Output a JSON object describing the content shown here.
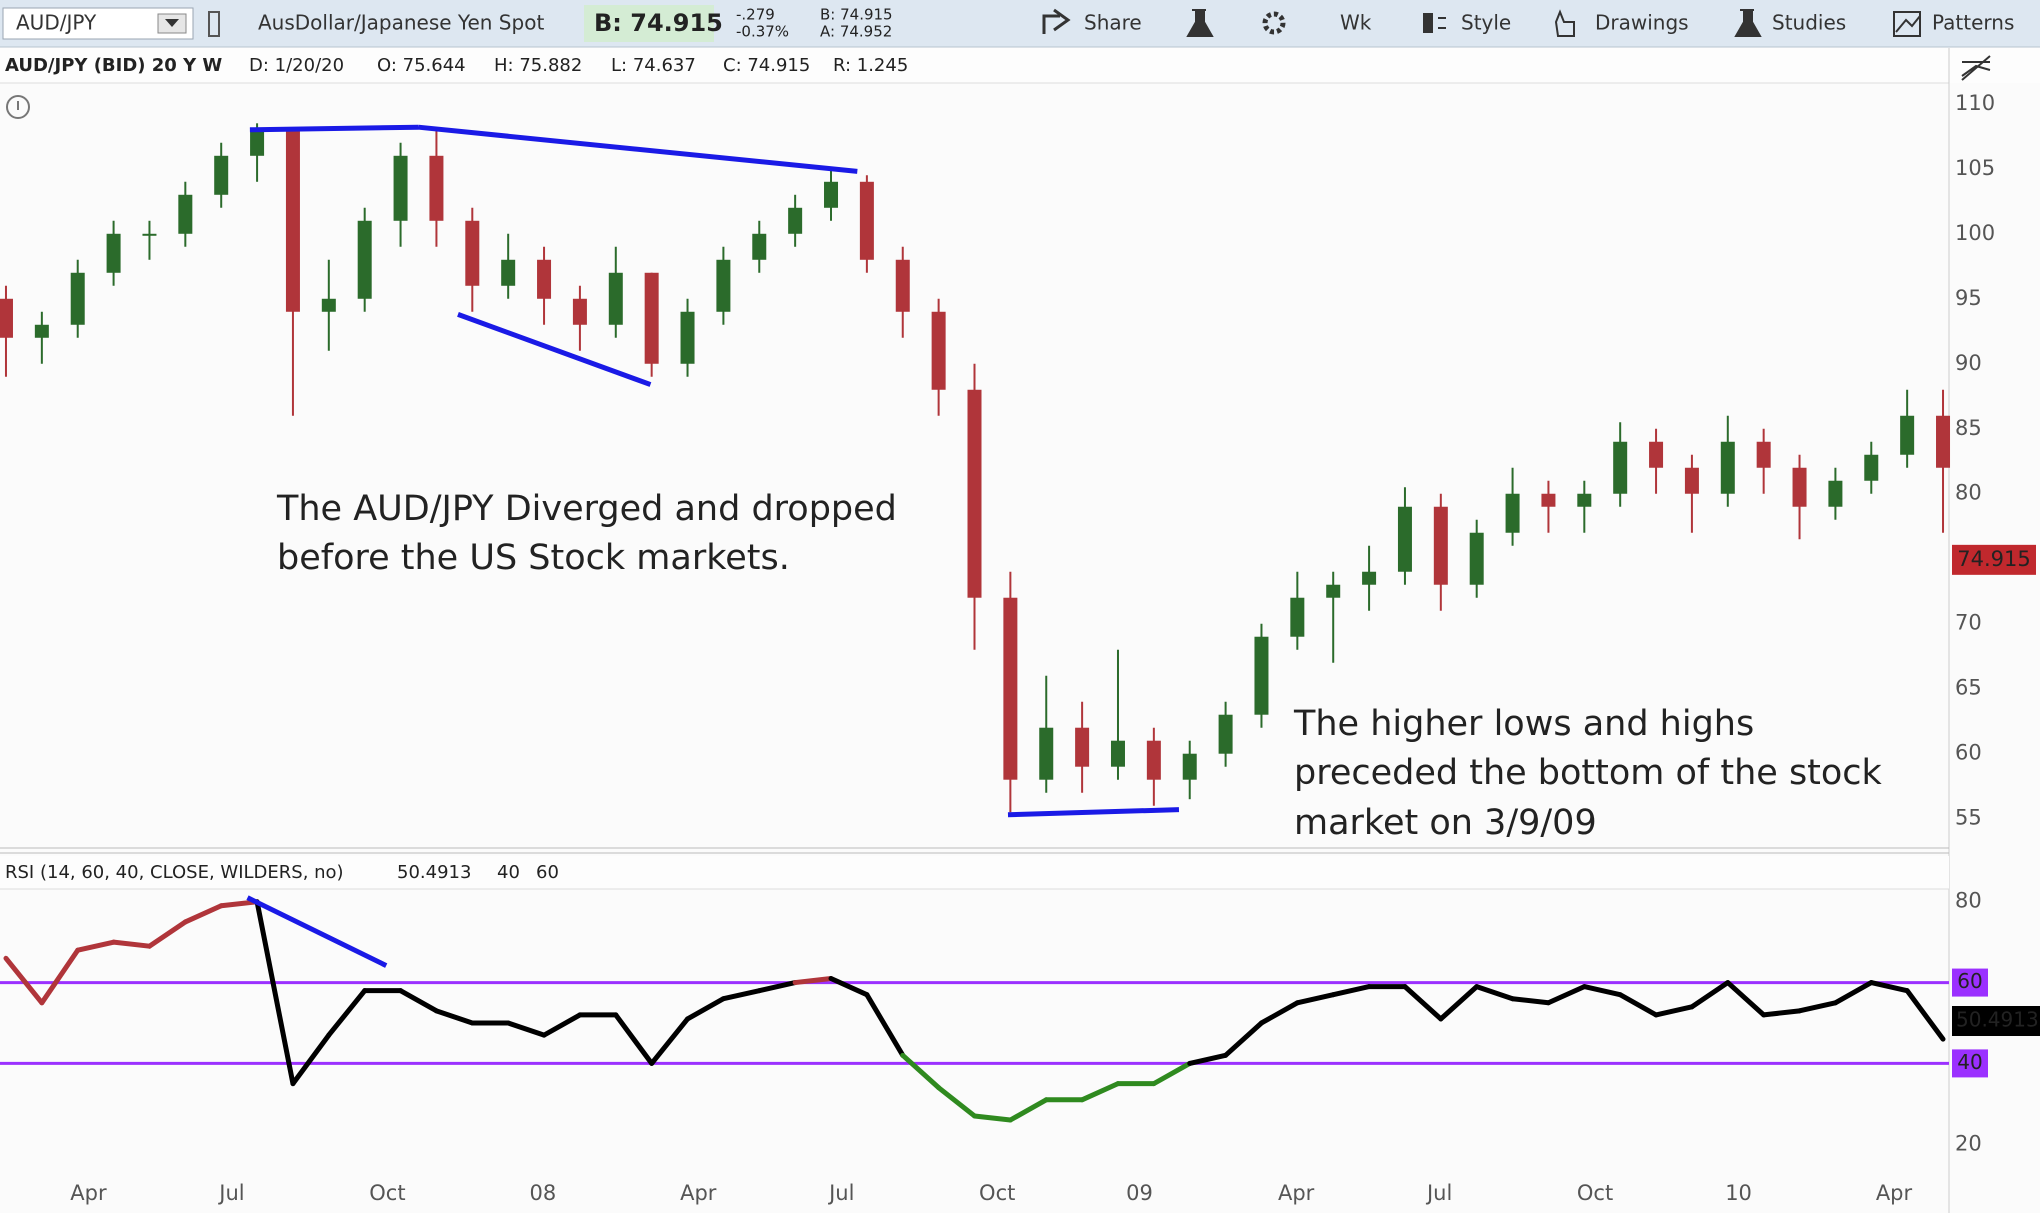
{
  "toolbar": {
    "symbol": "AUD/JPY",
    "description": "AusDollar/Japanese Yen Spot",
    "bid": "B: 74.915",
    "change": "-.279",
    "change_pct": "-0.37%",
    "bid_small": "B: 74.915",
    "ask_small": "A: 74.952",
    "buttons": [
      "Share",
      "Wk",
      "Style",
      "Drawings",
      "Studies",
      "Patterns"
    ]
  },
  "info": {
    "title": "AUD/JPY (BID) 20 Y W",
    "fields": [
      "D: 1/20/20",
      "O: 75.644",
      "H: 75.882",
      "L: 74.637",
      "C: 74.915",
      "R: 1.245"
    ]
  },
  "chart_data": [
    {
      "type": "candlestick",
      "x": [
        0.5,
        3.5,
        6.5,
        9.5,
        12.5,
        15.5,
        18.5,
        21.5,
        24.5,
        27.5,
        30.5,
        33.5,
        36.5,
        39.5,
        42.5,
        45.5,
        48.5,
        51.5,
        54.5,
        57.5,
        60.5,
        63.5,
        66.5,
        69.5,
        72.5,
        75.5,
        78.5,
        81.5,
        84.5,
        87.5,
        90.5,
        93.5,
        96.5,
        99.5,
        102.5,
        105.5,
        108.5,
        111.5,
        114.5,
        117.5,
        120.5,
        123.5,
        126.5,
        129.5,
        132.5,
        135.5,
        138.5,
        141.5,
        144.5,
        147.5,
        150.5,
        153.5,
        156.5,
        159.5,
        162.5
      ],
      "open": [
        95,
        92,
        93,
        97,
        100,
        100,
        103,
        106,
        108,
        94,
        95,
        101,
        106,
        101,
        96,
        98,
        95,
        93,
        97,
        90,
        94,
        98,
        100,
        102,
        104,
        98,
        94,
        88,
        72,
        58,
        62,
        59,
        61,
        58,
        60,
        63,
        69,
        72,
        73,
        74,
        79,
        73,
        77,
        80,
        79,
        80,
        84,
        82,
        80,
        84,
        82,
        79,
        81,
        83,
        86
      ],
      "high": [
        96,
        94,
        98,
        101,
        101,
        104,
        107,
        108.5,
        108,
        98,
        102,
        107,
        108,
        102,
        100,
        99,
        96,
        99,
        97,
        95,
        99,
        101,
        103,
        105,
        104.5,
        99,
        95,
        90,
        74,
        66,
        64,
        68,
        62,
        61,
        64,
        70,
        74,
        74,
        76,
        80.5,
        80,
        78,
        82,
        81,
        81,
        85.5,
        85,
        83,
        86,
        85,
        83,
        82,
        84,
        88,
        88
      ],
      "low": [
        89,
        90,
        92,
        96,
        98,
        99,
        102,
        104,
        86,
        91,
        94,
        99,
        99,
        94,
        95,
        93,
        91,
        92,
        89,
        89,
        93,
        97,
        99,
        101,
        97,
        92,
        86,
        68,
        55.5,
        57,
        57,
        58,
        56,
        56.5,
        59,
        62,
        68,
        67,
        71,
        73,
        71,
        72,
        76,
        77,
        77,
        79,
        80,
        77,
        79,
        80,
        76.5,
        78,
        80,
        82,
        77
      ],
      "close": [
        92,
        93,
        97,
        100,
        100,
        103,
        106,
        108,
        94,
        95,
        101,
        106,
        101,
        96,
        98,
        95,
        93,
        97,
        90,
        94,
        98,
        100,
        102,
        104,
        98,
        94,
        88,
        72,
        58,
        62,
        59,
        61,
        58,
        60,
        63,
        69,
        72,
        73,
        74,
        79,
        73,
        77,
        80,
        79,
        80,
        84,
        82,
        80,
        84,
        82,
        79,
        81,
        83,
        86,
        82
      ],
      "up_color": "#2b6b2b",
      "down_color": "#b0353a",
      "xlim": [
        0,
        163
      ],
      "ylim": [
        52.9,
        111.6
      ],
      "yticks": [
        55,
        60,
        65,
        70,
        75,
        80,
        85,
        90,
        95,
        100,
        105,
        110
      ],
      "last_price": 74.915,
      "last_price_color": "#c0282d",
      "trendline_color": "#1a1ae6",
      "trendlines": [
        {
          "x": [
            20.9,
            35.0
          ],
          "y": [
            108.0,
            108.2
          ]
        },
        {
          "x": [
            35.0,
            71.7
          ],
          "y": [
            108.2,
            104.8
          ]
        },
        {
          "x": [
            38.3,
            54.4
          ],
          "y": [
            93.8,
            88.4
          ]
        },
        {
          "x": [
            84.3,
            98.6
          ],
          "y": [
            55.3,
            55.7
          ]
        }
      ],
      "annotations": [
        [
          "The AUD/JPY Diverged and dropped",
          "before the US Stock markets."
        ],
        [
          "The higher lows and highs",
          "preceded the bottom of the stock",
          "market on 3/9/09"
        ]
      ]
    },
    {
      "type": "line",
      "title": "RSI (14, 60, 40, CLOSE, WILDERS, no)",
      "x": [
        0.5,
        3.5,
        6.5,
        9.5,
        12.5,
        15.5,
        18.5,
        21.5,
        24.5,
        27.5,
        30.5,
        33.5,
        36.5,
        39.5,
        42.5,
        45.5,
        48.5,
        51.5,
        54.5,
        57.5,
        60.5,
        63.5,
        66.5,
        69.5,
        72.5,
        75.5,
        78.5,
        81.5,
        84.5,
        87.5,
        90.5,
        93.5,
        96.5,
        99.5,
        102.5,
        105.5,
        108.5,
        111.5,
        114.5,
        117.5,
        120.5,
        123.5,
        126.5,
        129.5,
        132.5,
        135.5,
        138.5,
        141.5,
        144.5,
        147.5,
        150.5,
        153.5,
        156.5,
        159.5,
        162.5
      ],
      "values": [
        66,
        55,
        68,
        70,
        69,
        75,
        79,
        80,
        35,
        47,
        58,
        58,
        53,
        50,
        50,
        47,
        52,
        52,
        40,
        51,
        56,
        58,
        60,
        61,
        57,
        42,
        34,
        27,
        26,
        31,
        31,
        35,
        35,
        40,
        42,
        50,
        55,
        57,
        59,
        59,
        51,
        59,
        56,
        55,
        59,
        57,
        52,
        54,
        60,
        52,
        53,
        55,
        60,
        58,
        46
      ],
      "color": "#000000",
      "above_color": "#b0353a",
      "below_color": "#2f8a1f",
      "current": 50.4913,
      "levels": [
        40,
        60
      ],
      "level_color": "#9b30ff",
      "xlim": [
        0,
        163
      ],
      "ylim": [
        11.9,
        82.9
      ],
      "yticks": [
        20,
        80
      ],
      "xticks": [
        {
          "value": 7.4,
          "label": "Apr"
        },
        {
          "value": 19.4,
          "label": "Jul"
        },
        {
          "value": 32.4,
          "label": "Oct"
        },
        {
          "value": 45.4,
          "label": "08"
        },
        {
          "value": 58.4,
          "label": "Apr"
        },
        {
          "value": 70.4,
          "label": "Jul"
        },
        {
          "value": 83.4,
          "label": "Oct"
        },
        {
          "value": 95.3,
          "label": "09"
        },
        {
          "value": 108.4,
          "label": "Apr"
        },
        {
          "value": 120.4,
          "label": "Jul"
        },
        {
          "value": 133.4,
          "label": "Oct"
        },
        {
          "value": 145.4,
          "label": "10"
        },
        {
          "value": 158.4,
          "label": "Apr"
        }
      ],
      "trendline_color": "#1a1ae6",
      "trendlines": [
        {
          "x": [
            20.7,
            32.3
          ],
          "y": [
            81,
            64.2
          ]
        }
      ]
    }
  ]
}
